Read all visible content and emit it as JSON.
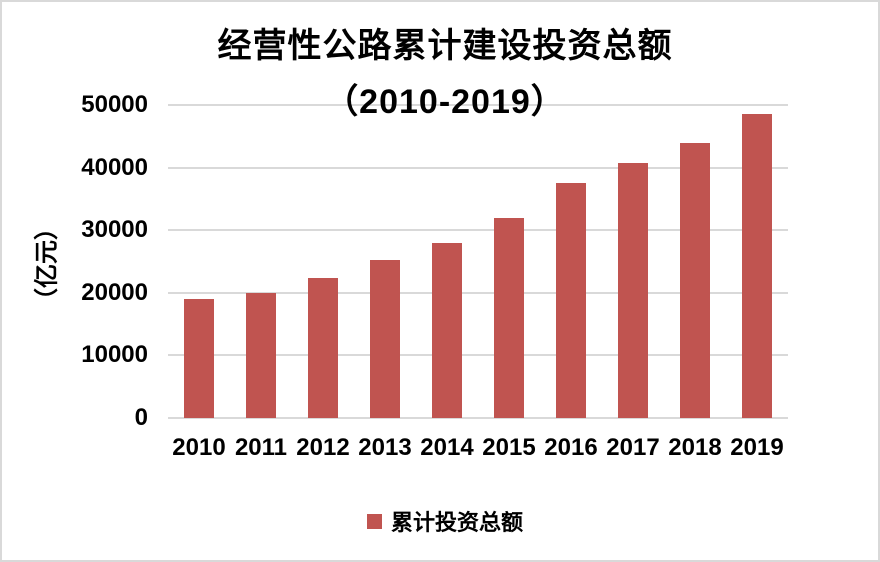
{
  "chart": {
    "title_line1": "经营性公路累计建设投资总额",
    "title_line2": "（2010-2019）",
    "y_axis_title": "（亿元）",
    "legend_label": "累计投资总额",
    "colors": {
      "bar": "#C05450",
      "gridline": "#D9D9D9",
      "text": "#000000",
      "frame_border": "#D9D9D9",
      "background": "#FFFFFF"
    }
  },
  "chart_data": {
    "type": "bar",
    "title": "经营性公路累计建设投资总额（2010-2019）",
    "xlabel": "",
    "ylabel": "（亿元）",
    "categories": [
      "2010",
      "2011",
      "2012",
      "2013",
      "2014",
      "2015",
      "2016",
      "2017",
      "2018",
      "2019"
    ],
    "series": [
      {
        "name": "累计投资总额",
        "values": [
          19000,
          20000,
          22400,
          25200,
          28000,
          32000,
          37600,
          40800,
          43900,
          48500
        ]
      }
    ],
    "ylim": [
      0,
      50000
    ],
    "yticks": [
      0,
      10000,
      20000,
      30000,
      40000,
      50000
    ],
    "grid": true,
    "legend_position": "bottom",
    "bar_color": "#C05450"
  }
}
